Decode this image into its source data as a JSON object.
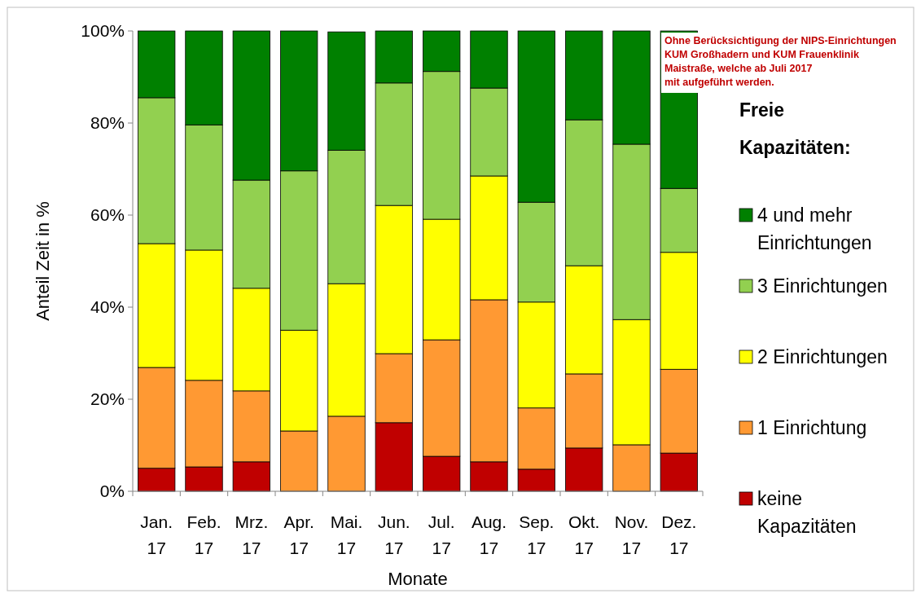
{
  "chart_data": {
    "type": "bar",
    "stacked": true,
    "xlabel": "Monate",
    "ylabel": "Anteil Zeit in %",
    "legend_title": "Freie Kapazitäten:",
    "legend": "right",
    "grid": false,
    "categories": [
      "Jan. 17",
      "Feb. 17",
      "Mrz. 17",
      "Apr. 17",
      "Mai. 17",
      "Jun. 17",
      "Jul. 17",
      "Aug. 17",
      "Sep. 17",
      "Okt. 17",
      "Nov. 17",
      "Dez. 17"
    ],
    "ylim": [
      0,
      100
    ],
    "yticks": [
      {
        "value": 0,
        "label": "0%"
      },
      {
        "value": 20,
        "label": "20%"
      },
      {
        "value": 40,
        "label": "40%"
      },
      {
        "value": 60,
        "label": "60%"
      },
      {
        "value": 80,
        "label": "80%"
      },
      {
        "value": 100,
        "label": "100%"
      }
    ],
    "series": [
      {
        "name": "keine Kapazitäten",
        "color": "#c00000",
        "values": [
          5.0,
          5.3,
          6.4,
          0,
          null,
          14.9,
          7.6,
          6.4,
          4.8,
          9.4,
          0,
          8.3
        ]
      },
      {
        "name": "1 Einrichtung",
        "color": "#ff9933",
        "values": [
          21.9,
          18.8,
          15.4,
          13.1,
          16.3,
          15.0,
          25.3,
          35.2,
          13.3,
          16.1,
          10.1,
          18.2
        ]
      },
      {
        "name": "2 Einrichtungen",
        "color": "#ffff00",
        "values": [
          26.9,
          28.3,
          22.3,
          21.9,
          28.8,
          32.2,
          26.2,
          26.9,
          23.0,
          23.5,
          27.2,
          25.4
        ]
      },
      {
        "name": "3 Einrichtungen",
        "color": "#92d050",
        "values": [
          31.7,
          27.2,
          23.5,
          34.6,
          29.0,
          26.6,
          32.1,
          19.1,
          21.7,
          31.7,
          38.1,
          13.9
        ]
      },
      {
        "name": "4 und mehr Einrichtungen",
        "color": "#008000",
        "values": [
          14.5,
          20.4,
          32.4,
          30.4,
          25.7,
          11.3,
          8.8,
          12.4,
          37.2,
          19.3,
          24.6,
          34.2
        ]
      }
    ],
    "annotations": [
      "Ohne Berücksichtigung der NIPS-Einrichtungen",
      "KUM Großhadern und KUM Frauenklinik",
      "Maistraße, welche ab Juli 2017",
      "mit aufgeführt werden."
    ]
  }
}
